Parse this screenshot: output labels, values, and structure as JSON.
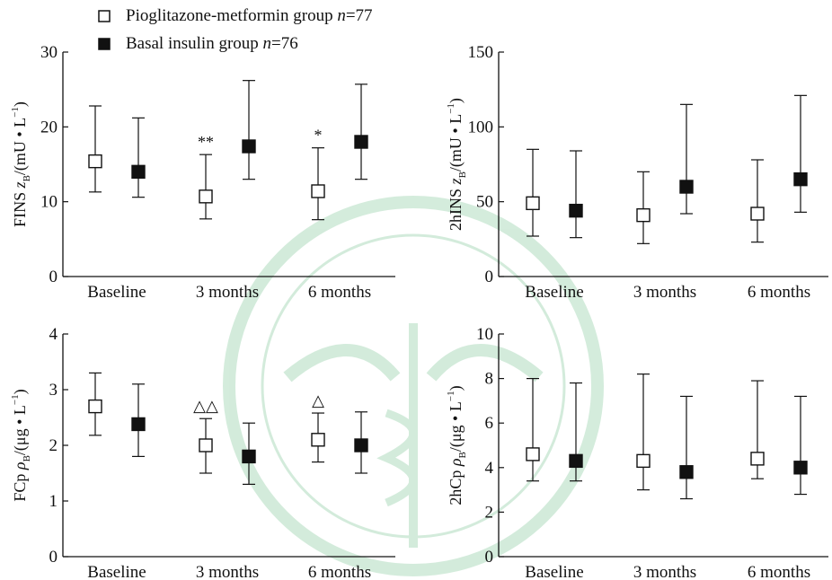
{
  "legend": {
    "items": [
      {
        "label": "Pioglitazone-metformin group ",
        "n_label": "n",
        "n_value": "=77",
        "marker": "open-square"
      },
      {
        "label": "Basal insulin group ",
        "n_label": "n",
        "n_value": "=76",
        "marker": "filled-square"
      }
    ]
  },
  "chart_data": [
    {
      "type": "scatter",
      "title": "",
      "ylabel": "FINS z_B/(mU • L⁻¹)",
      "ylim": [
        0,
        30
      ],
      "yticks": [
        0,
        10,
        20,
        30
      ],
      "categories": [
        "Baseline",
        "3 months",
        "6 months"
      ],
      "series": [
        {
          "name": "Pioglitazone-metformin group n=77",
          "marker": "open-square",
          "values": [
            15.4,
            10.7,
            11.4
          ],
          "lower": [
            11.3,
            7.7,
            7.6
          ],
          "upper": [
            22.8,
            16.3,
            17.2
          ]
        },
        {
          "name": "Basal insulin group n=76",
          "marker": "filled-square",
          "values": [
            14.0,
            17.4,
            18.0
          ],
          "lower": [
            10.6,
            13.0,
            13.0
          ],
          "upper": [
            21.2,
            26.2,
            25.7
          ]
        }
      ],
      "annotations": [
        {
          "category": "3 months",
          "text": "**"
        },
        {
          "category": "6 months",
          "text": "*"
        }
      ]
    },
    {
      "type": "scatter",
      "title": "",
      "ylabel": "2hINS z_B/(mU • L⁻¹)",
      "ylim": [
        0,
        150
      ],
      "yticks": [
        0,
        50,
        100,
        150
      ],
      "categories": [
        "Baseline",
        "3 months",
        "6 months"
      ],
      "series": [
        {
          "name": "Pioglitazone-metformin group n=77",
          "marker": "open-square",
          "values": [
            49,
            41,
            42
          ],
          "lower": [
            27,
            22,
            23
          ],
          "upper": [
            85,
            70,
            78
          ]
        },
        {
          "name": "Basal insulin group n=76",
          "marker": "filled-square",
          "values": [
            44,
            60,
            65
          ],
          "lower": [
            26,
            42,
            43
          ],
          "upper": [
            84,
            115,
            121
          ]
        }
      ],
      "annotations": []
    },
    {
      "type": "scatter",
      "title": "",
      "ylabel": "FCp ρ_B/(μg • L⁻¹)",
      "ylim": [
        0,
        4
      ],
      "yticks": [
        0,
        1,
        2,
        3,
        4
      ],
      "categories": [
        "Baseline",
        "3 months",
        "6 months"
      ],
      "series": [
        {
          "name": "Pioglitazone-metformin group n=77",
          "marker": "open-square",
          "values": [
            2.7,
            2.0,
            2.1
          ],
          "lower": [
            2.18,
            1.5,
            1.7
          ],
          "upper": [
            3.3,
            2.48,
            2.58
          ]
        },
        {
          "name": "Basal insulin group n=76",
          "marker": "filled-square",
          "values": [
            2.38,
            1.8,
            2.0
          ],
          "lower": [
            1.8,
            1.3,
            1.5
          ],
          "upper": [
            3.1,
            2.4,
            2.6
          ]
        }
      ],
      "annotations": [
        {
          "category": "3 months",
          "text": "△△"
        },
        {
          "category": "6 months",
          "text": "△"
        }
      ]
    },
    {
      "type": "scatter",
      "title": "",
      "ylabel": "2hCp ρ_B/(μg • L⁻¹)",
      "ylim": [
        0,
        10
      ],
      "yticks": [
        0,
        2,
        4,
        6,
        8,
        10
      ],
      "categories": [
        "Baseline",
        "3 months",
        "6 months"
      ],
      "series": [
        {
          "name": "Pioglitazone-metformin group n=77",
          "marker": "open-square",
          "values": [
            4.6,
            4.3,
            4.4
          ],
          "lower": [
            3.4,
            3.0,
            3.5
          ],
          "upper": [
            8.0,
            8.2,
            7.9
          ]
        },
        {
          "name": "Basal insulin group n=76",
          "marker": "filled-square",
          "values": [
            4.3,
            3.8,
            4.0
          ],
          "lower": [
            3.4,
            2.6,
            2.8
          ],
          "upper": [
            7.8,
            7.2,
            7.2
          ]
        }
      ],
      "annotations": []
    }
  ]
}
